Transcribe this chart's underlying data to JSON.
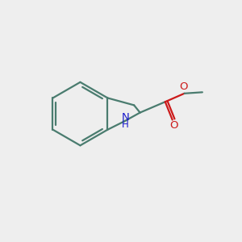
{
  "background_color": "#eeeeee",
  "bond_color": "#4a7c6f",
  "n_color": "#1a1acc",
  "o_color": "#cc1a1a",
  "line_width": 1.6,
  "figsize": [
    3.0,
    3.0
  ],
  "dpi": 100,
  "xlim": [
    0,
    10
  ],
  "ylim": [
    0,
    10
  ]
}
